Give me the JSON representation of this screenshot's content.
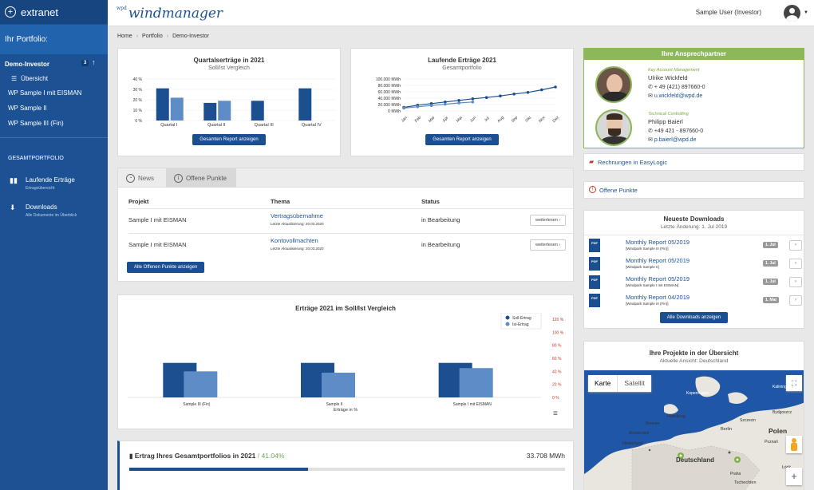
{
  "sidebar": {
    "brand": "extranet",
    "portfolio_label": "Ihr Portfolio:",
    "active_portfolio": "Demo-Investor",
    "active_count": "3",
    "overview_label": "Übersicht",
    "items": [
      "WP Sample I mit EISMAN",
      "WP Sample II",
      "WP Sample III (Fin)"
    ],
    "section_label": "GESAMTPORTFOLIO",
    "links": [
      {
        "title": "Laufende Erträge",
        "subtitle": "Ertragsübersicht",
        "icon": "bar-chart-icon"
      },
      {
        "title": "Downloads",
        "subtitle": "Alle Dokumente im Überblick",
        "icon": "download-icon"
      }
    ]
  },
  "topbar": {
    "logo": "windmanager",
    "logo_prefix": "wpd",
    "user": "Sample User (Investor)"
  },
  "breadcrumb": [
    "Home",
    "Portfolio",
    "Demo-Investor"
  ],
  "quartal": {
    "title": "Quartalserträge in 2021",
    "subtitle": "Soll/Ist Vergleich",
    "button": "Gesamten Report anzeigen"
  },
  "laufend": {
    "title": "Laufende Erträge 2021",
    "subtitle": "Gesamtportfolio",
    "button": "Gesamten Report anzeigen"
  },
  "news": {
    "tabs": [
      "News",
      "Offene Punkte"
    ],
    "headers": [
      "Projekt",
      "Thema",
      "Status"
    ],
    "rows": [
      {
        "projekt": "Sample I mit EISMAN",
        "thema": "Vertragsübernahme",
        "datum": "Letzte Aktualisierung: 20.03.2020",
        "status": "in Bearbeitung",
        "action": "weiterlesen"
      },
      {
        "projekt": "Sample I mit EISMAN",
        "thema": "Kontovollmachten",
        "datum": "Letzte Aktualisierung: 20.03.2020",
        "status": "in Bearbeitung",
        "action": "weiterlesen"
      }
    ],
    "button": "Alle Offenen Punkte anzeigen"
  },
  "ertraege": {
    "title": "Erträge 2021 im Soll/Ist Vergleich",
    "xlabel": "Erträge in %"
  },
  "gesamt": {
    "title": "Ertrag Ihres Gesamtportfolios in 2021",
    "percent": "41.04%",
    "separator": "/",
    "value": "33.708 MWh",
    "progress": 0.41
  },
  "ansprech": {
    "title": "Ihre Ansprechpartner",
    "people": [
      {
        "role": "Key Account Management",
        "name": "Ulrike Wickfeld",
        "tel": "+ 49 (421) 897660-0",
        "mail": "u.wickfeld@wpd.de"
      },
      {
        "role": "Technical Controlling",
        "name": "Philipp Baierl",
        "tel": "+49 421 - 897660-0",
        "mail": "p.baierl@wpd.de"
      }
    ]
  },
  "rechnungen": "Rechnungen in EasyLogic",
  "offene_punkte": "Offene Punkte",
  "downloads": {
    "title": "Neueste Downloads",
    "subtitle": "Letzte Änderung: 1. Jul 2019",
    "items": [
      {
        "title": "Monthly Report 05/2019",
        "sub": "[Windpark Sample III (Fin)]",
        "badge": "1. Jul"
      },
      {
        "title": "Monthly Report 05/2019",
        "sub": "[Windpark Sample II]",
        "badge": "1. Jul"
      },
      {
        "title": "Monthly Report 05/2019",
        "sub": "[Windpark Sample I mit EISMAN]",
        "badge": "1. Jul"
      },
      {
        "title": "Monthly Report 04/2019",
        "sub": "[Windpark Sample III (Fin)]",
        "badge": "1. Mai"
      }
    ],
    "pdf_label": "PDF",
    "button": "Alle Downloads anzeigen"
  },
  "map": {
    "title": "Ihre Projekte in der Übersicht",
    "subtitle": "Aktuelle Ansicht: Deutschland",
    "tabs": [
      "Karte",
      "Satellit"
    ],
    "labels": [
      "Polen",
      "Deutschland",
      "Berlin",
      "Hamburg",
      "Bremen",
      "Amsterdam",
      "Nederland",
      "Tschechien",
      "Praha",
      "Szczecin",
      "Bydgoszcz",
      "Poznań",
      "Łódź",
      "Kopenhagen",
      "Kaliningrad"
    ]
  },
  "chart_data": [
    {
      "type": "bar",
      "title": "Quartalserträge in 2021",
      "subtitle": "Soll/Ist Vergleich",
      "categories": [
        "Quartal I",
        "Quartal II",
        "Quartal III",
        "Quartal IV"
      ],
      "series": [
        {
          "name": "",
          "values": [
            31,
            17,
            19,
            31
          ],
          "color": "#1c4f8f"
        },
        {
          "name": "",
          "values": [
            22,
            19,
            null,
            null
          ],
          "color": "#5e8cc7"
        }
      ],
      "ylim": [
        0,
        40
      ],
      "yticks": [
        "0 %",
        "10 %",
        "20 %",
        "30 %",
        "40 %"
      ]
    },
    {
      "type": "line",
      "title": "Laufende Erträge 2021",
      "subtitle": "Gesamtportfolio",
      "x": [
        "Jan",
        "Feb",
        "Mar",
        "Apr",
        "Mai",
        "Jun",
        "Jul",
        "Aug",
        "Sep",
        "Okt",
        "Nov",
        "Dez"
      ],
      "series": [
        {
          "name": "",
          "values": [
            11000,
            18000,
            23000,
            28000,
            33000,
            38000,
            42000,
            47000,
            53000,
            58000,
            66000,
            75000
          ],
          "color": "#1c4f8f"
        },
        {
          "name": "",
          "values": [
            9000,
            13000,
            17000,
            21000,
            25000,
            28000,
            null,
            null,
            null,
            null,
            null,
            null
          ],
          "color": "#5e8cc7"
        }
      ],
      "ylim": [
        0,
        100000
      ],
      "yticks": [
        "0 MWh",
        "20.000 MWh",
        "40.000 MWh",
        "60.000 MWh",
        "80.000 MWh",
        "100.000 MWh"
      ]
    },
    {
      "type": "bar",
      "title": "Erträge 2021 im Soll/Ist Vergleich",
      "xlabel": "Erträge in %",
      "categories": [
        "Sample III (Fin)",
        "Sample II",
        "Sample I mit EISMAN"
      ],
      "series": [
        {
          "name": "Soll-Ertrag",
          "values": [
            53,
            53,
            53
          ],
          "color": "#1c4f8f"
        },
        {
          "name": "Ist-Ertrag",
          "values": [
            40,
            38,
            45
          ],
          "color": "#5e8cc7"
        }
      ],
      "ylim": [
        0,
        120
      ],
      "yticks": [
        "0 %",
        "20 %",
        "40 %",
        "60 %",
        "80 %",
        "100 %",
        "120 %"
      ],
      "legend": "top-right"
    }
  ]
}
